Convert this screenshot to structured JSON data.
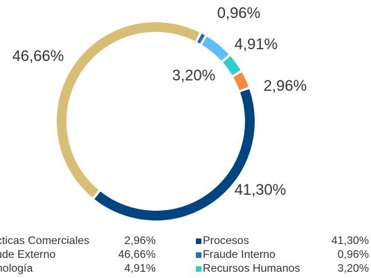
{
  "chart_data": {
    "type": "donut",
    "categories": [
      "Fraude Interno",
      "Tecnología",
      "Recursos Humanos",
      "Prácticas Comerciales",
      "Procesos",
      "Fraude Externo"
    ],
    "values": [
      0.96,
      4.91,
      3.2,
      2.96,
      41.3,
      46.66
    ],
    "value_labels": [
      "0,96%",
      "4,91%",
      "3,20%",
      "2,96%",
      "41,30%",
      "46,66%"
    ],
    "colors": [
      "#1973b8",
      "#5bbeff",
      "#2dcccd",
      "#f7893b",
      "#004481",
      "#d8be75"
    ]
  }
}
